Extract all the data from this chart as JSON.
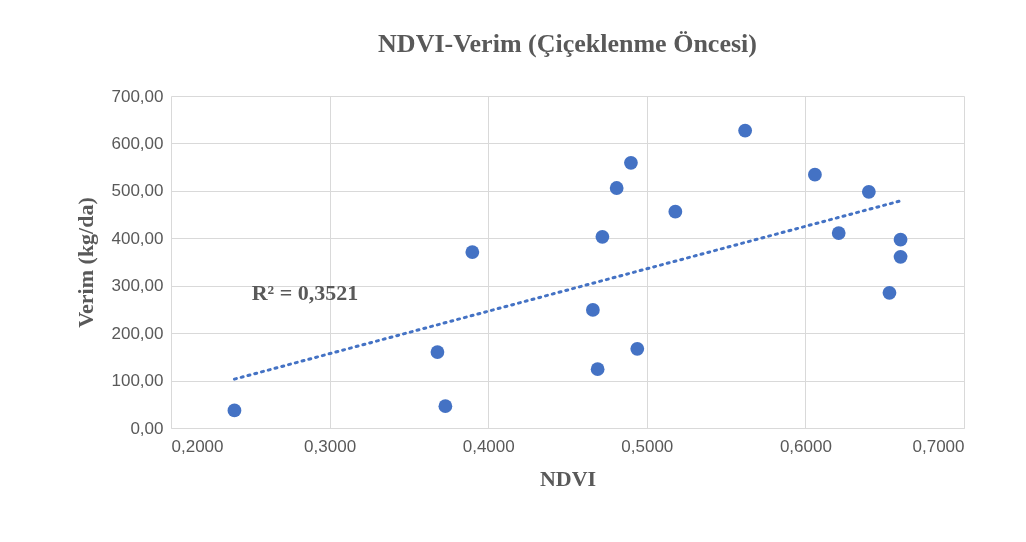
{
  "chart_data": {
    "type": "scatter",
    "title": "NDVI-Verim (Çiçeklenme Öncesi)",
    "xlabel": "NDVI",
    "ylabel": "Verim (kg/da)",
    "xlim": [
      0.2,
      0.7
    ],
    "xticks": [
      {
        "value": 0.2,
        "label": "0,2000"
      },
      {
        "value": 0.3,
        "label": "0,3000"
      },
      {
        "value": 0.4,
        "label": "0,4000"
      },
      {
        "value": 0.5,
        "label": "0,5000"
      },
      {
        "value": 0.6,
        "label": "0,6000"
      },
      {
        "value": 0.7,
        "label": "0,7000"
      }
    ],
    "ylim": [
      0,
      700
    ],
    "yticks": [
      {
        "value": 0,
        "label": "0,00"
      },
      {
        "value": 100,
        "label": "100,00"
      },
      {
        "value": 200,
        "label": "200,00"
      },
      {
        "value": 300,
        "label": "300,00"
      },
      {
        "value": 400,
        "label": "400,00"
      },
      {
        "value": 500,
        "label": "500,00"
      },
      {
        "value": 600,
        "label": "600,00"
      },
      {
        "value": 700,
        "label": "700,00"
      }
    ],
    "grid": true,
    "series": [
      {
        "color": "#4472c4",
        "marker": "circle",
        "x": [
          0.24,
          0.368,
          0.373,
          0.39,
          0.466,
          0.469,
          0.472,
          0.481,
          0.49,
          0.494,
          0.518,
          0.562,
          0.606,
          0.621,
          0.64,
          0.66,
          0.66,
          0.653
        ],
        "values": [
          37,
          160,
          46,
          371,
          249,
          124,
          403,
          506,
          559,
          167,
          456,
          627,
          534,
          411,
          498,
          397,
          361,
          285
        ]
      },
      {
        "type": "line",
        "color": "#4472c4",
        "marker": "none",
        "line_style": "dotted",
        "x": [
          0.24,
          0.659
        ],
        "values": [
          103,
          478
        ]
      }
    ],
    "annotations": [
      "R² = 0,3521"
    ]
  }
}
